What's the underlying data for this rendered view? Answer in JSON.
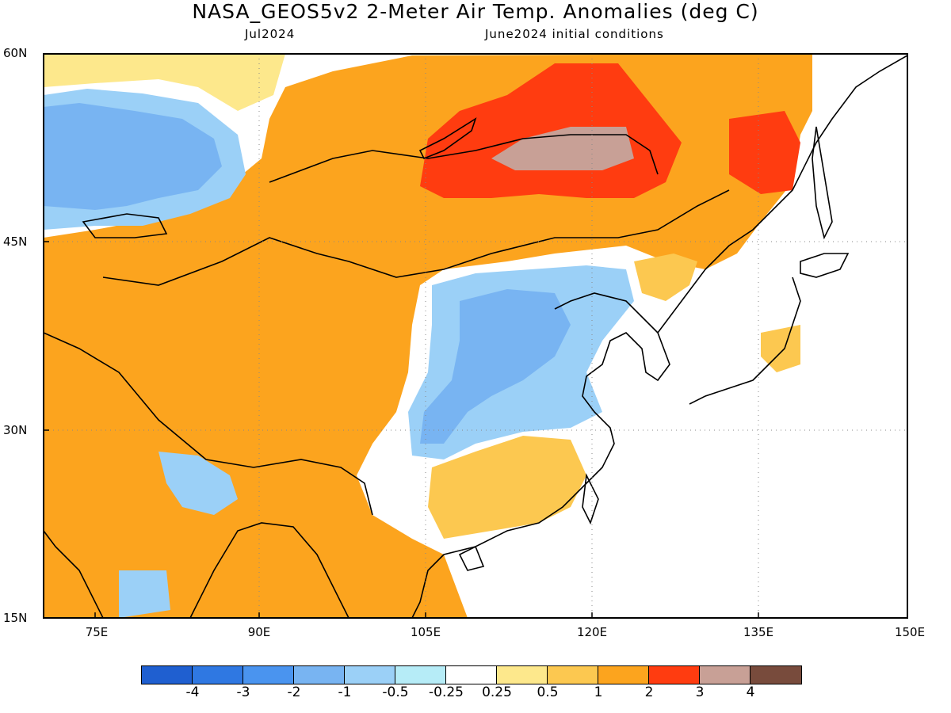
{
  "title": "NASA_GEOS5v2 2-Meter Air Temp. Anomalies (deg C)",
  "subtitle_left": "Jul2024",
  "subtitle_right": "June2024 initial conditions",
  "lat_labels": [
    "60N",
    "45N",
    "30N",
    "15N"
  ],
  "lon_labels": [
    "75E",
    "90E",
    "105E",
    "120E",
    "135E",
    "150E"
  ],
  "colorbar": {
    "colors": [
      "#1f5fd0",
      "#2f78e2",
      "#4a94ef",
      "#78b4f2",
      "#9bd0f7",
      "#b6ecf7",
      "#ffffff",
      "#fde88c",
      "#fcc850",
      "#fca41e",
      "#ff3c10",
      "#c8a096",
      "#784b3c"
    ],
    "labels": [
      "-4",
      "-3",
      "-2",
      "-1",
      "-0.5",
      "-0.25",
      "0.25",
      "0.5",
      "1",
      "2",
      "3",
      "4"
    ]
  },
  "anomaly_regions": [
    {
      "level": "1",
      "color": "#fca41e"
    },
    {
      "level": "0.5",
      "color": "#fcc850"
    },
    {
      "level": "0.25",
      "color": "#fde88c"
    },
    {
      "level": "-0.25",
      "color": "#b6ecf7"
    },
    {
      "level": "-0.5",
      "color": "#9bd0f7"
    },
    {
      "level": "-1",
      "color": "#78b4f2"
    },
    {
      "level": "2",
      "color": "#ff3c10"
    },
    {
      "level": "3",
      "color": "#c8a096"
    }
  ]
}
